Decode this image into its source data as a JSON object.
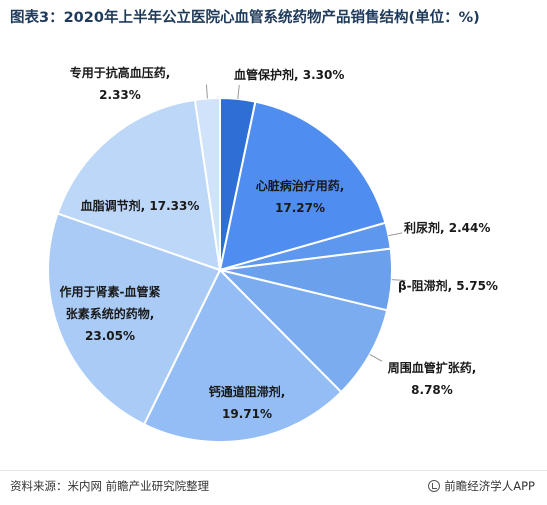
{
  "title": "图表3：2020年上半年公立医院心血管系统药物产品销售结构(单位：%)",
  "chart_data": {
    "type": "pie",
    "unit": "%",
    "slices": [
      {
        "name": "血管保护剂",
        "value": 3.3,
        "label_text": "血管保护剂, 3.30%",
        "color": "#2e6fd6"
      },
      {
        "name": "心脏病治疗用药",
        "value": 17.27,
        "label_text": "心脏病治疗用药, 17.27%",
        "color": "#4f8df0"
      },
      {
        "name": "利尿剂",
        "value": 2.44,
        "label_text": "利尿剂, 2.44%",
        "color": "#5e97ee"
      },
      {
        "name": "β-阻滞剂",
        "value": 5.75,
        "label_text": "β-阻滞剂, 5.75%",
        "color": "#6aa0ec"
      },
      {
        "name": "周围血管扩张药",
        "value": 8.78,
        "label_text": "周围血管扩张药, 8.78%",
        "color": "#7bacf0"
      },
      {
        "name": "钙通道阻滞剂",
        "value": 19.71,
        "label_text": "钙通道阻滞剂, 19.71%",
        "color": "#93bdf4"
      },
      {
        "name": "作用于肾素-血管紧张素系统的药物",
        "value": 23.05,
        "label_text": "作用于肾素-血管紧张素系统的药物, 23.05%",
        "color": "#a9cbf6"
      },
      {
        "name": "血脂调节剂",
        "value": 17.33,
        "label_text": "血脂调节剂, 17.33%",
        "color": "#bdd7f8"
      },
      {
        "name": "专用于抗高血压药",
        "value": 2.33,
        "label_text": "专用于抗高血压药, 2.33%",
        "color": "#d0e3fa"
      }
    ]
  },
  "footer": {
    "source": "资料来源：米内网 前瞻产业研究院整理",
    "brand": "前瞻经济学人APP"
  }
}
